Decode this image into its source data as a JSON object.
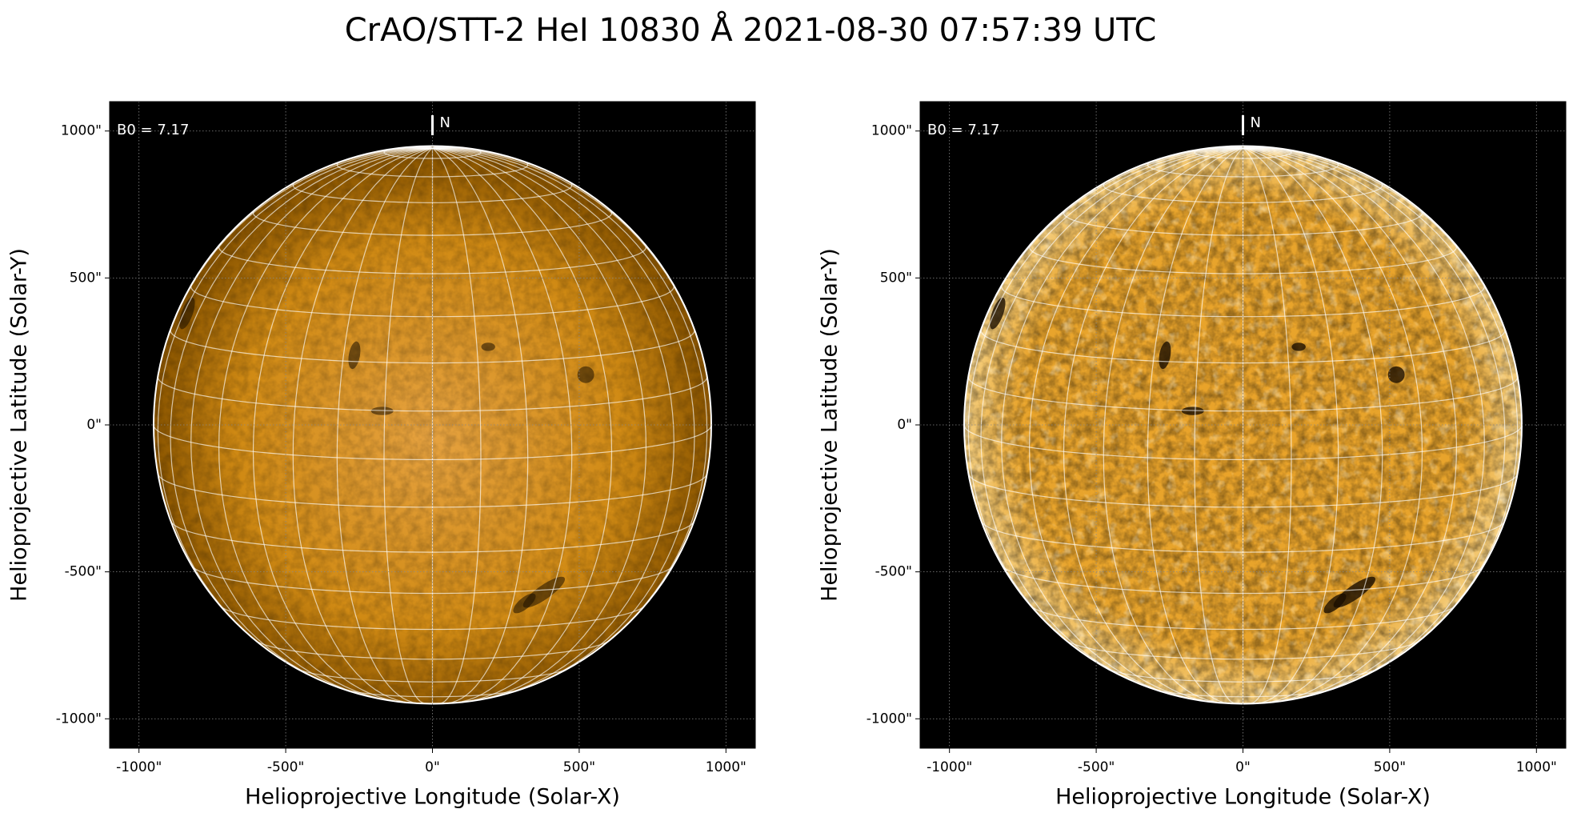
{
  "title": "CrAO/STT-2 HeI 10830 Å 2021-08-30 07:57:39 UTC",
  "chart_data": [
    {
      "type": "image",
      "xlabel": "Helioprojective Longitude (Solar-X)",
      "ylabel": "Helioprojective Latitude (Solar-Y)",
      "annotation": "B0 = 7.17",
      "north_label": "N",
      "disk_radius": 950,
      "xlim": [
        -1100,
        1100
      ],
      "ylim": [
        -1100,
        1100
      ],
      "xticks": [
        {
          "value": -1000,
          "label": "-1000\""
        },
        {
          "value": -500,
          "label": "-500\""
        },
        {
          "value": 0,
          "label": "0\""
        },
        {
          "value": 500,
          "label": "500\""
        },
        {
          "value": 1000,
          "label": "1000\""
        }
      ],
      "yticks": [
        {
          "value": -1000,
          "label": "-1000\""
        },
        {
          "value": -500,
          "label": "-500\""
        },
        {
          "value": 0,
          "label": "0\""
        },
        {
          "value": 500,
          "label": "500\""
        },
        {
          "value": 1000,
          "label": "1000\""
        }
      ]
    },
    {
      "type": "image",
      "xlabel": "Helioprojective Longitude (Solar-X)",
      "ylabel": "Helioprojective Latitude (Solar-Y)",
      "annotation": "B0 = 7.17",
      "north_label": "N",
      "disk_radius": 950,
      "xlim": [
        -1100,
        1100
      ],
      "ylim": [
        -1100,
        1100
      ],
      "xticks": [
        {
          "value": -1000,
          "label": "-1000\""
        },
        {
          "value": -500,
          "label": "-500\""
        },
        {
          "value": 0,
          "label": "0\""
        },
        {
          "value": 500,
          "label": "500\""
        },
        {
          "value": 1000,
          "label": "1000\""
        }
      ],
      "yticks": [
        {
          "value": -1000,
          "label": "-1000\""
        },
        {
          "value": -500,
          "label": "-500\""
        },
        {
          "value": 0,
          "label": "0\""
        },
        {
          "value": 500,
          "label": "500\""
        },
        {
          "value": 1000,
          "label": "1000\""
        }
      ]
    }
  ]
}
